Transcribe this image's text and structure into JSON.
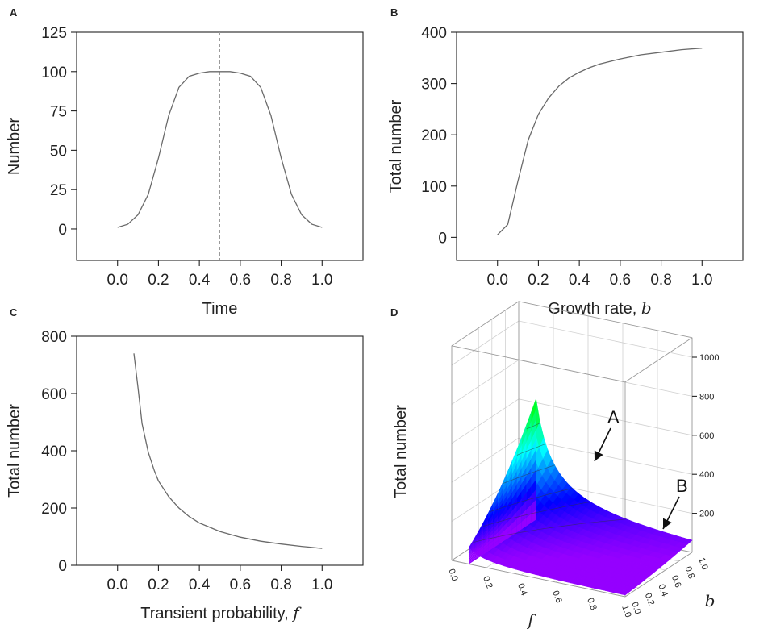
{
  "chart_data": [
    {
      "panel": "A",
      "type": "line",
      "xlabel": "Time",
      "ylabel": "Number",
      "xticks": [
        "0.0",
        "0.2",
        "0.4",
        "0.6",
        "0.8",
        "1.0"
      ],
      "yticks": [
        "0",
        "25",
        "50",
        "75",
        "100",
        "125"
      ],
      "xlim": [
        -0.2,
        1.2
      ],
      "ylim": [
        -20,
        125
      ],
      "x": [
        0.0,
        0.05,
        0.1,
        0.15,
        0.2,
        0.25,
        0.3,
        0.35,
        0.4,
        0.45,
        0.5,
        0.55,
        0.6,
        0.65,
        0.7,
        0.75,
        0.8,
        0.85,
        0.9,
        0.95,
        1.0
      ],
      "y": [
        1,
        3,
        9,
        22,
        45,
        72,
        90,
        97,
        99,
        100,
        100,
        100,
        99,
        97,
        90,
        72,
        45,
        22,
        9,
        3,
        1
      ],
      "annotation": {
        "type": "vertical-dashed",
        "x": 0.5
      }
    },
    {
      "panel": "B",
      "type": "line",
      "xlabel": "Growth rate, ",
      "xlabel_var": "b",
      "ylabel": "Total number",
      "xticks": [
        "0.0",
        "0.2",
        "0.4",
        "0.6",
        "0.8",
        "1.0"
      ],
      "yticks": [
        "0",
        "100",
        "200",
        "300",
        "400"
      ],
      "xlim": [
        -0.2,
        1.2
      ],
      "ylim": [
        -45,
        400
      ],
      "x": [
        0.0,
        0.05,
        0.1,
        0.15,
        0.2,
        0.25,
        0.3,
        0.35,
        0.4,
        0.45,
        0.5,
        0.6,
        0.7,
        0.8,
        0.9,
        1.0
      ],
      "y": [
        5,
        25,
        110,
        190,
        240,
        272,
        295,
        311,
        322,
        331,
        338,
        348,
        356,
        361,
        366,
        369
      ]
    },
    {
      "panel": "C",
      "type": "line",
      "xlabel": "Transient probability, ",
      "xlabel_var": "f",
      "ylabel": "Total number",
      "xticks": [
        "0.0",
        "0.2",
        "0.4",
        "0.6",
        "0.8",
        "1.0"
      ],
      "yticks": [
        "0",
        "200",
        "400",
        "600",
        "800"
      ],
      "xlim": [
        -0.2,
        1.2
      ],
      "ylim": [
        0,
        800
      ],
      "x": [
        0.08,
        0.1,
        0.12,
        0.15,
        0.18,
        0.2,
        0.25,
        0.3,
        0.35,
        0.4,
        0.5,
        0.6,
        0.7,
        0.8,
        0.9,
        1.0
      ],
      "y": [
        740,
        620,
        495,
        395,
        330,
        295,
        240,
        200,
        170,
        148,
        118,
        98,
        84,
        74,
        66,
        59
      ]
    },
    {
      "panel": "D",
      "type": "surface3d",
      "xlabel": "f",
      "ylabel": "b",
      "zlabel": "Total number",
      "zticks": [
        "200",
        "400",
        "600",
        "800",
        "1000"
      ],
      "xticks": [
        "0.0",
        "0.2",
        "0.4",
        "0.6",
        "0.8",
        "1.0"
      ],
      "yticks": [
        "0.0",
        "0.2",
        "0.4",
        "0.6",
        "0.8",
        "1.0"
      ],
      "annotations": [
        {
          "label": "A"
        },
        {
          "label": "B"
        }
      ]
    }
  ],
  "panel_letters": {
    "a": "A",
    "b": "B",
    "c": "C",
    "d": "D"
  }
}
